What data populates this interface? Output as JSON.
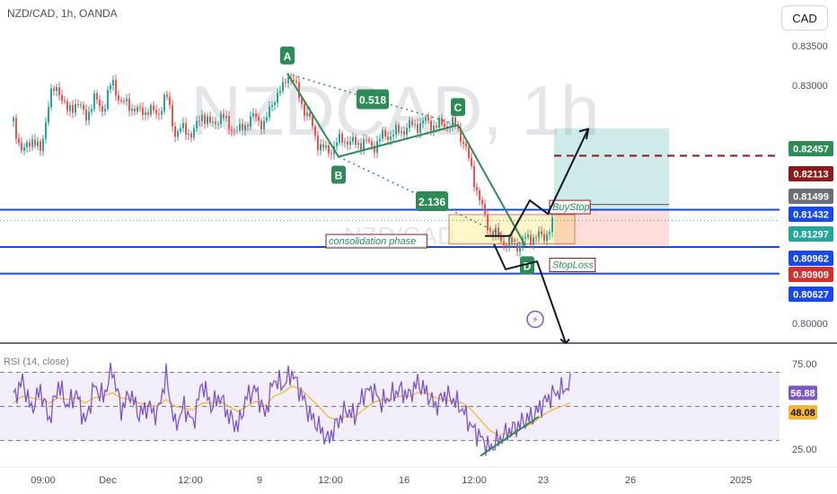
{
  "header": {
    "symbol": "NZD/CAD, 1h, OANDA",
    "currency_button": "CAD"
  },
  "watermark": "NZDCAD, 1h",
  "watermark_small": "NZD/CAD",
  "colors": {
    "up": "#26a69a",
    "down": "#ef5350",
    "blue_line": "#1848e8",
    "rsi": "#7e57c2",
    "rsi_ma": "#f5b731",
    "target": "#2e8b57",
    "stop": "#d32f2f"
  },
  "chart_data": [
    {
      "type": "line",
      "title": "",
      "symbol": "NZD/CAD",
      "timeframe": "1h",
      "source": "OANDA",
      "ylim": [
        0.7975,
        0.8385
      ],
      "y_tick_labels": [
        "0.83500",
        "0.83000",
        "0.80000"
      ],
      "x_tick_labels": [
        "09:00",
        "Dec",
        "12:00",
        "9",
        "12:00",
        "16",
        "12:00",
        "23",
        "26",
        "2025"
      ],
      "price_x": [
        0,
        10,
        20,
        30,
        40,
        50,
        60,
        70,
        80,
        90,
        100,
        110,
        120,
        130,
        140,
        150,
        160,
        170,
        180,
        190,
        200,
        210,
        220,
        230,
        240,
        250,
        260,
        270,
        280,
        290,
        300,
        305,
        310,
        320,
        330,
        340,
        350,
        360,
        370,
        380,
        390,
        400,
        410,
        420,
        430,
        440,
        450,
        460,
        470,
        480,
        490,
        495,
        500,
        510,
        520,
        530,
        540,
        550,
        560,
        570,
        580,
        590,
        600
      ],
      "price_y": [
        0.8255,
        0.8212,
        0.8235,
        0.8215,
        0.8285,
        0.8298,
        0.8265,
        0.828,
        0.826,
        0.8282,
        0.827,
        0.8305,
        0.8278,
        0.8275,
        0.8265,
        0.827,
        0.8262,
        0.8288,
        0.824,
        0.8245,
        0.8238,
        0.8265,
        0.8248,
        0.8262,
        0.825,
        0.824,
        0.8255,
        0.826,
        0.825,
        0.8285,
        0.8295,
        0.8315,
        0.831,
        0.828,
        0.8255,
        0.8225,
        0.8215,
        0.8228,
        0.8232,
        0.8225,
        0.823,
        0.8222,
        0.8235,
        0.8238,
        0.8242,
        0.8248,
        0.825,
        0.8255,
        0.8248,
        0.8252,
        0.825,
        0.8245,
        0.8232,
        0.8195,
        0.815,
        0.8118,
        0.8108,
        0.81,
        0.8098,
        0.8105,
        0.811,
        0.8108,
        0.8125
      ],
      "price_labels": [
        {
          "text": "0.82457",
          "value": 0.82457,
          "style": "green"
        },
        {
          "text": "0.82113",
          "value": 0.82113,
          "style": "darkred"
        },
        {
          "text": "0.81499",
          "value": 0.81499,
          "style": "gray"
        },
        {
          "text": "0.81432",
          "value": 0.81432,
          "style": "blue"
        },
        {
          "text": "0.81297",
          "value": 0.81297,
          "style": "teal"
        },
        {
          "text": "0.80962",
          "value": 0.80962,
          "style": "blue"
        },
        {
          "text": "0.80909",
          "value": 0.80909,
          "style": "red"
        },
        {
          "text": "0.80627",
          "value": 0.80627,
          "style": "blue"
        }
      ],
      "horizontal_lines": [
        0.81432,
        0.80962,
        0.80627
      ],
      "pattern_points": [
        {
          "label": "A",
          "x": 305,
          "y": 0.8315
        },
        {
          "label": "B",
          "x": 362,
          "y": 0.821
        },
        {
          "label": "C",
          "x": 495,
          "y": 0.825
        },
        {
          "label": "D",
          "x": 570,
          "y": 0.8098
        }
      ],
      "ratios": [
        {
          "text": "0.518"
        },
        {
          "text": "2.136"
        }
      ],
      "annotations": [
        "consolidation phase",
        "BuyStop",
        "StopLoss"
      ]
    },
    {
      "type": "line",
      "title": "RSI (14, close)",
      "ylim": [
        17,
        84
      ],
      "y_tick_labels": [
        "75.00",
        "25.00"
      ],
      "rsi_x": [
        0,
        10,
        20,
        30,
        40,
        50,
        60,
        70,
        80,
        90,
        100,
        110,
        120,
        130,
        140,
        150,
        160,
        170,
        180,
        190,
        200,
        210,
        220,
        230,
        240,
        250,
        260,
        270,
        280,
        290,
        300,
        310,
        320,
        330,
        340,
        350,
        360,
        370,
        380,
        390,
        400,
        410,
        420,
        430,
        440,
        450,
        460,
        470,
        480,
        490,
        500,
        510,
        520,
        530,
        540,
        550,
        560,
        570,
        580,
        590,
        600,
        620
      ],
      "rsi": [
        55,
        65,
        48,
        60,
        42,
        63,
        50,
        58,
        40,
        62,
        55,
        72,
        48,
        58,
        45,
        50,
        45,
        68,
        38,
        50,
        40,
        64,
        50,
        56,
        44,
        38,
        56,
        60,
        45,
        66,
        62,
        70,
        58,
        45,
        38,
        30,
        40,
        48,
        44,
        58,
        60,
        52,
        56,
        60,
        56,
        64,
        58,
        50,
        57,
        54,
        48,
        38,
        32,
        25,
        30,
        35,
        38,
        42,
        45,
        52,
        57,
        62
      ],
      "rsi_ma": [
        52,
        56,
        55,
        54,
        52,
        55,
        54,
        55,
        52,
        55,
        56,
        58,
        55,
        54,
        52,
        51,
        50,
        54,
        50,
        49,
        48,
        52,
        52,
        53,
        50,
        47,
        50,
        53,
        50,
        56,
        58,
        62,
        60,
        55,
        50,
        44,
        42,
        44,
        44,
        48,
        52,
        54,
        54,
        56,
        56,
        58,
        58,
        55,
        54,
        53,
        52,
        48,
        42,
        36,
        33,
        34,
        36,
        38,
        41,
        45,
        48,
        52
      ],
      "labels": [
        {
          "text": "56.88",
          "value": 56.88
        },
        {
          "text": "48.08",
          "value": 48.08
        }
      ]
    }
  ]
}
